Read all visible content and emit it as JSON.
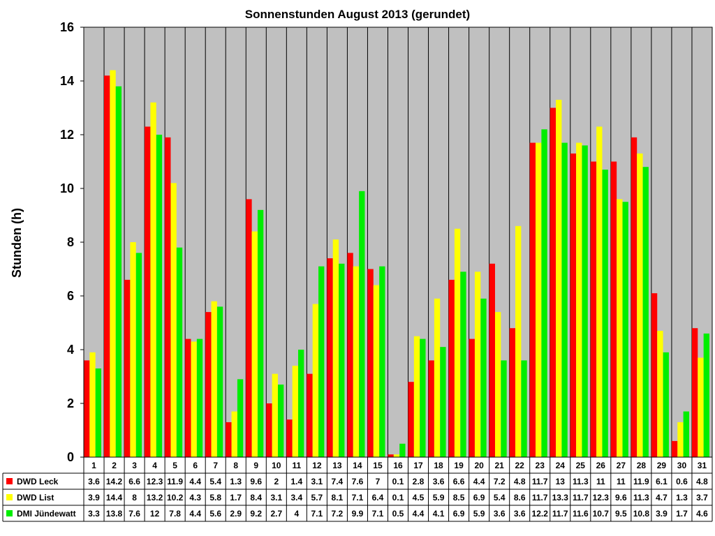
{
  "colors": {
    "plot_background": "#c0c0c0",
    "DWD Leck": "#ff0000",
    "DWD List": "#ffff00",
    "DMI Jündewatt": "#00ee00"
  },
  "chart_data": {
    "type": "bar",
    "title": "Sonnenstunden August 2013 (gerundet)",
    "xlabel": "",
    "ylabel": "Stunden (h)",
    "ylim": [
      0,
      16
    ],
    "yticks": [
      0,
      2,
      4,
      6,
      8,
      10,
      12,
      14,
      16
    ],
    "grid": "vertical",
    "legend": "data-table-left",
    "categories": [
      "1",
      "2",
      "3",
      "4",
      "5",
      "6",
      "7",
      "8",
      "9",
      "10",
      "11",
      "12",
      "13",
      "14",
      "15",
      "16",
      "17",
      "18",
      "19",
      "20",
      "21",
      "22",
      "23",
      "24",
      "25",
      "26",
      "27",
      "28",
      "29",
      "30",
      "31"
    ],
    "series": [
      {
        "name": "DWD Leck",
        "values": [
          3.6,
          14.2,
          6.6,
          12.3,
          11.9,
          4.4,
          5.4,
          1.3,
          9.6,
          2,
          1.4,
          3.1,
          7.4,
          7.6,
          7,
          0.1,
          2.8,
          3.6,
          6.6,
          4.4,
          7.2,
          4.8,
          11.7,
          13,
          11.3,
          11,
          11,
          11.9,
          6.1,
          0.6,
          4.8
        ],
        "labels": [
          "3.6",
          "14.2",
          "6.6",
          "12.3",
          "11.9",
          "4.4",
          "5.4",
          "1.3",
          "9.6",
          "2",
          "1.4",
          "3.1",
          "7.4",
          "7.6",
          "7",
          "0.1",
          "2.8",
          "3.6",
          "6.6",
          "4.4",
          "7.2",
          "4.8",
          "11.7",
          "13",
          "11.3",
          "11",
          "11",
          "11.9",
          "6.1",
          "0.6",
          "4.8"
        ]
      },
      {
        "name": "DWD List",
        "values": [
          3.9,
          14.4,
          8,
          13.2,
          10.2,
          4.3,
          5.8,
          1.7,
          8.4,
          3.1,
          3.4,
          5.7,
          8.1,
          7.1,
          6.4,
          0.1,
          4.5,
          5.9,
          8.5,
          6.9,
          5.4,
          8.6,
          11.7,
          13.3,
          11.7,
          12.3,
          9.6,
          11.3,
          4.7,
          1.3,
          3.7
        ],
        "labels": [
          "3.9",
          "14.4",
          "8",
          "13.2",
          "10.2",
          "4.3",
          "5.8",
          "1.7",
          "8.4",
          "3.1",
          "3.4",
          "5.7",
          "8.1",
          "7.1",
          "6.4",
          "0.1",
          "4.5",
          "5.9",
          "8.5",
          "6.9",
          "5.4",
          "8.6",
          "11.7",
          "13.3",
          "11.7",
          "12.3",
          "9.6",
          "11.3",
          "4.7",
          "1.3",
          "3.7"
        ]
      },
      {
        "name": "DMI Jündewatt",
        "values": [
          3.3,
          13.8,
          7.6,
          12,
          7.8,
          4.4,
          5.6,
          2.9,
          9.2,
          2.7,
          4,
          7.1,
          7.2,
          9.9,
          7.1,
          0.5,
          4.4,
          4.1,
          6.9,
          5.9,
          3.6,
          3.6,
          12.2,
          11.7,
          11.6,
          10.7,
          9.5,
          10.8,
          3.9,
          1.7,
          4.6
        ],
        "labels": [
          "3.3",
          "13.8",
          "7.6",
          "12",
          "7.8",
          "4.4",
          "5.6",
          "2.9",
          "9.2",
          "2.7",
          "4",
          "7.1",
          "7.2",
          "9.9",
          "7.1",
          "0.5",
          "4.4",
          "4.1",
          "6.9",
          "5.9",
          "3.6",
          "3.6",
          "12.2",
          "11.7",
          "11.6",
          "10.7",
          "9.5",
          "10.8",
          "3.9",
          "1.7",
          "4.6"
        ]
      }
    ]
  }
}
